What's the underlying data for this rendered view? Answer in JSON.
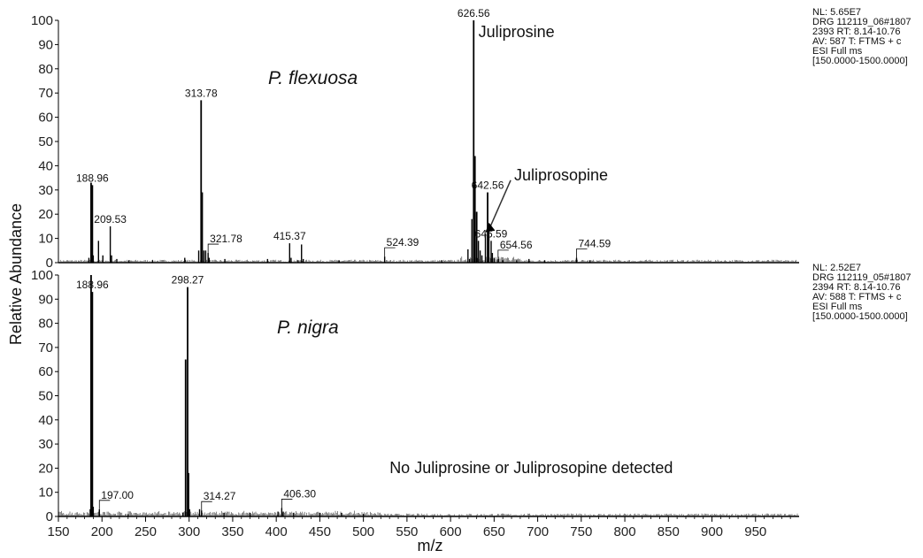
{
  "chart_data": {
    "type": "mass-spectrum",
    "xlabel": "m/z",
    "ylabel": "Relative Abundance",
    "xlim": [
      150,
      1000
    ],
    "x_ticks": [
      150,
      200,
      250,
      300,
      350,
      400,
      450,
      500,
      550,
      600,
      650,
      700,
      750,
      800,
      850,
      900,
      950
    ],
    "y_ticks": [
      0,
      10,
      20,
      30,
      40,
      50,
      60,
      70,
      80,
      90,
      100
    ],
    "panels": [
      {
        "id": "top",
        "species": "P. flexuosa",
        "ylim": [
          0,
          100
        ],
        "info": [
          "NL: 5.65E7",
          "DRG 112119_06#1807",
          "2393 RT: 8.14-10.76",
          "AV: 587 T: FTMS + c",
          "ESI Full ms",
          "[150.0000-1500.0000]"
        ],
        "annotations": [
          {
            "text": "Juliprosine",
            "x": 632,
            "y": 93
          },
          {
            "text": "Juliprosopine",
            "x": 673,
            "y": 34
          }
        ],
        "peaks": [
          {
            "mz": 185,
            "y": 2
          },
          {
            "mz": 187.5,
            "y": 33
          },
          {
            "mz": 188.96,
            "y": 32,
            "label": "188.96"
          },
          {
            "mz": 190,
            "y": 3
          },
          {
            "mz": 196,
            "y": 9
          },
          {
            "mz": 201,
            "y": 3
          },
          {
            "mz": 209.53,
            "y": 15,
            "label": "209.53"
          },
          {
            "mz": 211,
            "y": 3
          },
          {
            "mz": 217,
            "y": 1.5
          },
          {
            "mz": 231,
            "y": 1
          },
          {
            "mz": 258,
            "y": 1
          },
          {
            "mz": 295,
            "y": 2
          },
          {
            "mz": 311,
            "y": 5
          },
          {
            "mz": 313.78,
            "y": 67,
            "label": "313.78"
          },
          {
            "mz": 315,
            "y": 29
          },
          {
            "mz": 317,
            "y": 5
          },
          {
            "mz": 319,
            "y": 5
          },
          {
            "mz": 321.78,
            "y": 4,
            "label": "321.78"
          },
          {
            "mz": 323,
            "y": 2
          },
          {
            "mz": 341,
            "y": 1.5
          },
          {
            "mz": 390,
            "y": 1.5
          },
          {
            "mz": 415.37,
            "y": 8,
            "label": "415.37"
          },
          {
            "mz": 417,
            "y": 2
          },
          {
            "mz": 425,
            "y": 1
          },
          {
            "mz": 429,
            "y": 7.5
          },
          {
            "mz": 431,
            "y": 1.5
          },
          {
            "mz": 472,
            "y": 1
          },
          {
            "mz": 524.39,
            "y": 2.5,
            "label": "524.39"
          },
          {
            "mz": 590,
            "y": 1
          },
          {
            "mz": 620,
            "y": 5.5
          },
          {
            "mz": 622,
            "y": 1.5
          },
          {
            "mz": 624.5,
            "y": 18
          },
          {
            "mz": 626.56,
            "y": 100,
            "label": "626.56"
          },
          {
            "mz": 628,
            "y": 44
          },
          {
            "mz": 630,
            "y": 21
          },
          {
            "mz": 632,
            "y": 9
          },
          {
            "mz": 634,
            "y": 5
          },
          {
            "mz": 636,
            "y": 3
          },
          {
            "mz": 640,
            "y": 12
          },
          {
            "mz": 642.56,
            "y": 29,
            "label": "642.56"
          },
          {
            "mz": 644,
            "y": 14
          },
          {
            "mz": 646.59,
            "y": 9,
            "label": "646.59"
          },
          {
            "mz": 648,
            "y": 4
          },
          {
            "mz": 650,
            "y": 2
          },
          {
            "mz": 654.56,
            "y": 1.5,
            "label": "654.56"
          },
          {
            "mz": 660,
            "y": 1
          },
          {
            "mz": 676,
            "y": 1
          },
          {
            "mz": 690,
            "y": 1.5
          },
          {
            "mz": 708,
            "y": 1
          },
          {
            "mz": 744.59,
            "y": 2,
            "label": "744.59"
          },
          {
            "mz": 760,
            "y": 1
          }
        ]
      },
      {
        "id": "bottom",
        "species": "P. nigra",
        "ylim": [
          0,
          100
        ],
        "info": [
          "NL: 2.52E7",
          "DRG 112119_05#1807",
          "2394 RT: 8.14-10.76",
          "AV: 588 T: FTMS + c",
          "ESI Full ms",
          "[150.0000-1500.0000]"
        ],
        "annotations": [
          {
            "text": "No Juliprosine or Juliprosopine detected",
            "x": 530,
            "y": 18
          }
        ],
        "peaks": [
          {
            "mz": 186.5,
            "y": 3
          },
          {
            "mz": 187.5,
            "y": 100
          },
          {
            "mz": 188.96,
            "y": 93,
            "label": "188.96"
          },
          {
            "mz": 190,
            "y": 4
          },
          {
            "mz": 197.0,
            "y": 3,
            "label": "197.00"
          },
          {
            "mz": 230,
            "y": 1
          },
          {
            "mz": 293,
            "y": 1.5
          },
          {
            "mz": 296,
            "y": 65
          },
          {
            "mz": 298.27,
            "y": 95,
            "label": "298.27"
          },
          {
            "mz": 299.5,
            "y": 18
          },
          {
            "mz": 300.5,
            "y": 3
          },
          {
            "mz": 312,
            "y": 3
          },
          {
            "mz": 314.27,
            "y": 2.5,
            "label": "314.27"
          },
          {
            "mz": 340,
            "y": 1.5
          },
          {
            "mz": 370,
            "y": 1.5
          },
          {
            "mz": 402,
            "y": 2
          },
          {
            "mz": 406.3,
            "y": 3.5,
            "label": "406.30"
          },
          {
            "mz": 408,
            "y": 2
          },
          {
            "mz": 420,
            "y": 1.5
          },
          {
            "mz": 450,
            "y": 1.5
          },
          {
            "mz": 475,
            "y": 1.5
          },
          {
            "mz": 500,
            "y": 1
          }
        ]
      }
    ]
  }
}
